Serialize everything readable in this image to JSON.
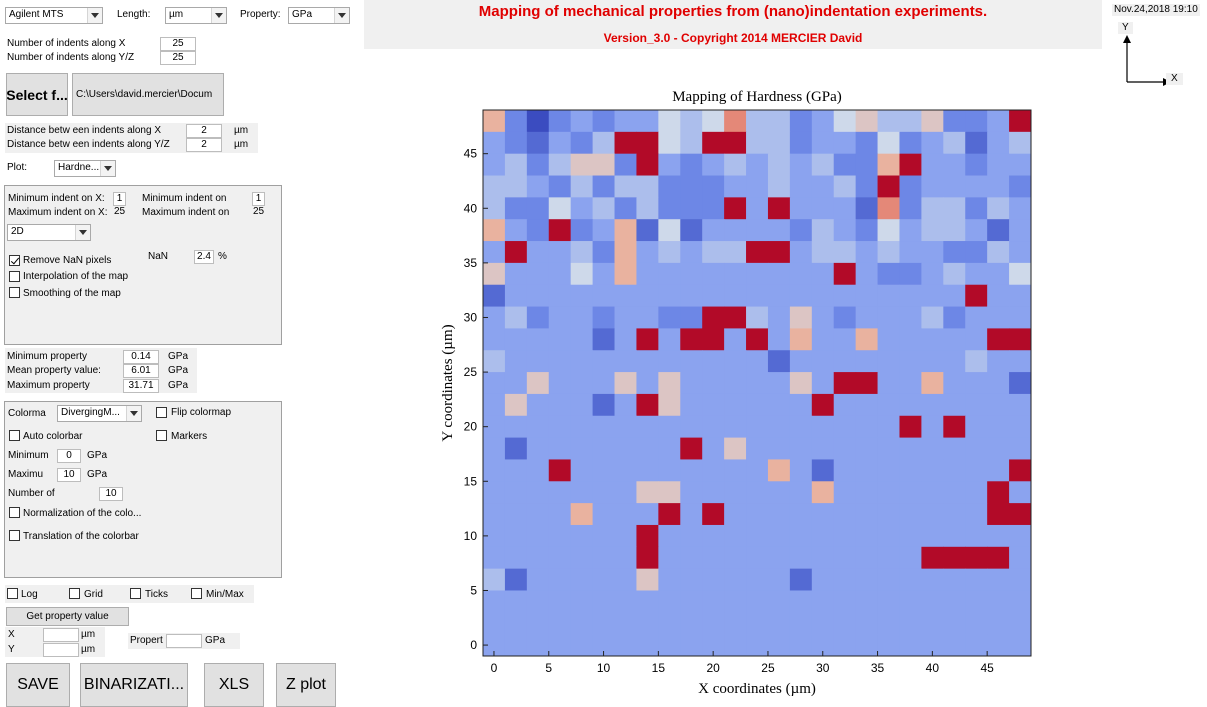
{
  "top": {
    "machine": "Agilent MTS",
    "length_label": "Length:",
    "length_unit": "µm",
    "property_label": "Property:",
    "property_unit": "GPa"
  },
  "header": {
    "title": "Mapping of mechanical properties from (nano)indentation experiments.",
    "version": "Version_3.0 - Copyright 2014 MERCIER David",
    "color": "#e00000"
  },
  "datetime": "Nov.24,2018 19:10",
  "axes_icon": {
    "y": "Y",
    "x": "X"
  },
  "indents": {
    "x_label": "Number of indents along X",
    "x_value": "25",
    "y_label": "Number of indents along Y/Z",
    "y_value": "25"
  },
  "file": {
    "select_label": "Select f...",
    "path": "C:\\Users\\david.mercier\\Docum"
  },
  "distance": {
    "x_label": "Distance betw een indents along X",
    "x_value": "2",
    "y_label": "Distance betw een indents along Y/Z",
    "y_value": "2",
    "unit": "µm"
  },
  "plot": {
    "label": "Plot:",
    "value": "Hardne..."
  },
  "range_panel": {
    "min_x_label": "Minimum indent on X:",
    "min_x": "1",
    "max_x_label": "Maximum indent on X:",
    "max_x": "25",
    "min_y_label": "Minimum indent on",
    "min_y": "1",
    "max_y_label": "Maximum indent on",
    "max_y": "25",
    "dim": "2D",
    "nan_label": "NaN",
    "nan_value": "2.4",
    "nan_unit": "%",
    "remove_nan": "Remove NaN pixels",
    "interp": "Interpolation of the map",
    "smooth": "Smoothing of the map"
  },
  "stats": {
    "min_label": "Minimum property",
    "min": "0.14",
    "mean_label": "Mean property value:",
    "mean": "6.01",
    "max_label": "Maximum property",
    "max": "31.71",
    "unit": "GPa"
  },
  "colorbar_panel": {
    "colormap_label": "Colorma",
    "colormap": "DivergingM...",
    "flip": "Flip colormap",
    "auto": "Auto colorbar",
    "markers": "Markers",
    "min_label": "Minimum",
    "min": "0",
    "max_label": "Maximu",
    "max": "10",
    "unit": "GPa",
    "number_label": "Number of",
    "number": "10",
    "normalization": "Normalization of the colo...",
    "translation": "Translation of the colorbar"
  },
  "options": {
    "log": "Log",
    "grid": "Grid",
    "ticks": "Ticks",
    "minmax": "Min/Max"
  },
  "getprop": {
    "button": "Get property value",
    "x_label": "X",
    "y_label": "Y",
    "unit_len": "µm",
    "prop_label": "Propert",
    "prop_unit": "GPa"
  },
  "buttons": {
    "save": "SAVE",
    "binarize": "BINARIZATI...",
    "xls": "XLS",
    "zplot": "Z plot"
  },
  "chart_data": {
    "type": "heatmap",
    "title": "Mapping of Hardness (GPa)",
    "xlabel": "X coordinates (µm)",
    "ylabel": "Y coordinates (µm)",
    "x_ticks": [
      "0",
      "5",
      "10",
      "15",
      "20",
      "25",
      "30",
      "35",
      "40",
      "45"
    ],
    "y_ticks": [
      "0",
      "5",
      "10",
      "15",
      "20",
      "25",
      "30",
      "35",
      "40",
      "45"
    ],
    "xlim": [
      -1,
      49
    ],
    "ylim": [
      -1,
      49
    ],
    "grid_size": 25,
    "step": 2,
    "colormap": "diverging blue-red",
    "color_range": [
      0,
      10
    ],
    "values": [
      [
        7,
        2,
        0,
        2,
        3,
        2,
        3,
        3,
        5,
        4,
        5,
        8,
        4,
        4,
        2,
        3,
        5,
        6,
        4,
        4,
        6,
        2,
        2,
        3,
        10
      ],
      [
        3,
        2,
        1,
        3,
        2,
        4,
        10,
        10,
        5,
        4,
        10,
        10,
        4,
        4,
        2,
        3,
        3,
        2,
        5,
        2,
        3,
        4,
        1,
        3,
        4
      ],
      [
        3,
        4,
        2,
        4,
        6,
        6,
        2,
        10,
        3,
        2,
        3,
        4,
        3,
        4,
        3,
        4,
        2,
        2,
        7,
        10,
        3,
        3,
        2,
        3,
        3
      ],
      [
        4,
        4,
        3,
        2,
        4,
        2,
        4,
        4,
        2,
        2,
        2,
        3,
        3,
        4,
        3,
        3,
        4,
        2,
        10,
        2,
        3,
        3,
        3,
        3,
        2
      ],
      [
        4,
        2,
        2,
        5,
        3,
        4,
        2,
        4,
        2,
        2,
        2,
        10,
        3,
        10,
        3,
        3,
        3,
        1,
        8,
        2,
        4,
        4,
        2,
        4,
        3
      ],
      [
        7,
        3,
        2,
        10,
        2,
        3,
        7,
        1,
        5,
        1,
        3,
        3,
        3,
        3,
        2,
        4,
        3,
        2,
        5,
        3,
        4,
        4,
        3,
        1,
        3
      ],
      [
        3,
        10,
        3,
        3,
        4,
        2,
        7,
        3,
        4,
        3,
        4,
        4,
        10,
        10,
        3,
        4,
        4,
        3,
        4,
        3,
        3,
        2,
        2,
        4,
        3
      ],
      [
        6,
        3,
        3,
        3,
        5,
        3,
        7,
        3,
        3,
        3,
        3,
        3,
        3,
        3,
        3,
        3,
        10,
        3,
        2,
        2,
        3,
        4,
        3,
        3,
        5
      ],
      [
        1,
        3,
        3,
        3,
        3,
        3,
        3,
        3,
        3,
        3,
        3,
        3,
        3,
        3,
        3,
        3,
        3,
        3,
        3,
        3,
        3,
        3,
        10,
        3,
        3
      ],
      [
        3,
        4,
        2,
        3,
        3,
        2,
        3,
        3,
        2,
        2,
        10,
        10,
        4,
        3,
        6,
        3,
        2,
        3,
        3,
        3,
        4,
        2,
        3,
        3,
        3
      ],
      [
        3,
        3,
        3,
        3,
        3,
        1,
        3,
        10,
        3,
        10,
        10,
        3,
        10,
        3,
        7,
        3,
        3,
        7,
        3,
        3,
        3,
        3,
        3,
        10,
        10
      ],
      [
        4,
        3,
        3,
        3,
        3,
        3,
        3,
        3,
        3,
        3,
        3,
        3,
        3,
        1,
        3,
        3,
        3,
        3,
        3,
        3,
        3,
        3,
        4,
        3,
        3
      ],
      [
        3,
        3,
        6,
        3,
        3,
        3,
        6,
        3,
        6,
        3,
        3,
        3,
        3,
        3,
        6,
        3,
        10,
        10,
        3,
        3,
        7,
        3,
        3,
        3,
        1
      ],
      [
        3,
        6,
        3,
        3,
        3,
        1,
        3,
        10,
        6,
        3,
        3,
        3,
        3,
        3,
        3,
        10,
        3,
        3,
        3,
        3,
        3,
        3,
        3,
        3,
        3
      ],
      [
        3,
        3,
        3,
        3,
        3,
        3,
        3,
        3,
        3,
        3,
        3,
        3,
        3,
        3,
        3,
        3,
        3,
        3,
        3,
        10,
        3,
        10,
        3,
        3,
        3
      ],
      [
        3,
        1,
        3,
        3,
        3,
        3,
        3,
        3,
        3,
        10,
        3,
        6,
        3,
        3,
        3,
        3,
        3,
        3,
        3,
        3,
        3,
        3,
        3,
        3,
        3
      ],
      [
        3,
        3,
        3,
        10,
        3,
        3,
        3,
        3,
        3,
        3,
        3,
        3,
        3,
        7,
        3,
        1,
        3,
        3,
        3,
        3,
        3,
        3,
        3,
        3,
        10
      ],
      [
        3,
        3,
        3,
        3,
        3,
        3,
        3,
        6,
        6,
        3,
        3,
        3,
        3,
        3,
        3,
        7,
        3,
        3,
        3,
        3,
        3,
        3,
        3,
        10,
        3
      ],
      [
        3,
        3,
        3,
        3,
        7,
        3,
        3,
        3,
        10,
        3,
        10,
        3,
        3,
        3,
        3,
        3,
        3,
        3,
        3,
        3,
        3,
        3,
        3,
        10,
        10
      ],
      [
        3,
        3,
        3,
        3,
        3,
        3,
        3,
        10,
        3,
        3,
        3,
        3,
        3,
        3,
        3,
        3,
        3,
        3,
        3,
        3,
        3,
        3,
        3,
        3,
        3
      ],
      [
        3,
        3,
        3,
        3,
        3,
        3,
        3,
        10,
        3,
        3,
        3,
        3,
        3,
        3,
        3,
        3,
        3,
        3,
        3,
        3,
        10,
        10,
        10,
        10,
        3
      ],
      [
        4,
        1,
        3,
        3,
        3,
        3,
        3,
        6,
        3,
        3,
        3,
        3,
        3,
        3,
        1,
        3,
        3,
        3,
        3,
        3,
        3,
        3,
        3,
        3,
        3
      ],
      [
        3,
        3,
        3,
        3,
        3,
        3,
        3,
        3,
        3,
        3,
        3,
        3,
        3,
        3,
        3,
        3,
        3,
        3,
        3,
        3,
        3,
        3,
        3,
        3,
        3
      ],
      [
        3,
        3,
        3,
        3,
        3,
        3,
        3,
        3,
        3,
        3,
        3,
        3,
        3,
        3,
        3,
        3,
        3,
        3,
        3,
        3,
        3,
        3,
        3,
        3,
        3
      ],
      [
        3,
        3,
        3,
        3,
        3,
        3,
        3,
        3,
        3,
        3,
        3,
        3,
        3,
        3,
        3,
        3,
        3,
        3,
        3,
        3,
        3,
        3,
        3,
        3,
        3
      ]
    ]
  }
}
